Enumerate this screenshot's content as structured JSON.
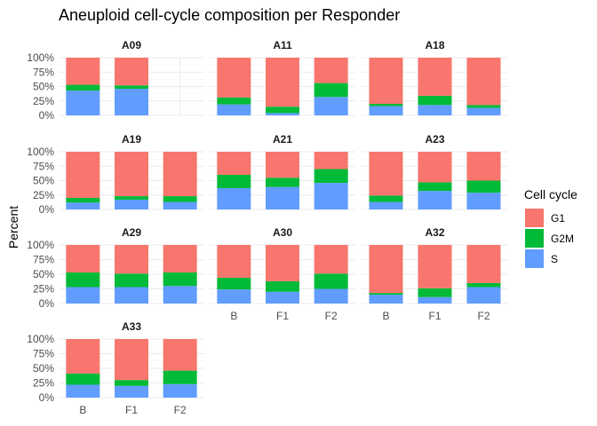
{
  "chart_data": {
    "type": "bar",
    "stacked": true,
    "title": "Aneuploid cell-cycle composition per Responder",
    "xlabel": "",
    "ylabel": "Percent",
    "ylim": [
      0,
      100
    ],
    "y_ticks": [
      "0%",
      "25%",
      "50%",
      "75%",
      "100%"
    ],
    "categories": [
      "B",
      "F1",
      "F2"
    ],
    "legend": {
      "title": "Cell cycle",
      "position": "right",
      "entries": [
        {
          "name": "G1",
          "color": "#F8766D"
        },
        {
          "name": "G2M",
          "color": "#00BA38"
        },
        {
          "name": "S",
          "color": "#619CFF"
        }
      ]
    },
    "grid": true,
    "facets": [
      {
        "name": "A09",
        "bars": [
          {
            "x": "B",
            "S": 43,
            "G2M": 10,
            "G1": 47
          },
          {
            "x": "F1",
            "S": 46,
            "G2M": 6,
            "G1": 48
          }
        ]
      },
      {
        "name": "A11",
        "bars": [
          {
            "x": "B",
            "S": 19,
            "G2M": 12,
            "G1": 69
          },
          {
            "x": "F1",
            "S": 4,
            "G2M": 11,
            "G1": 85
          },
          {
            "x": "F2",
            "S": 32,
            "G2M": 24,
            "G1": 44
          }
        ]
      },
      {
        "name": "A18",
        "bars": [
          {
            "x": "B",
            "S": 16,
            "G2M": 4,
            "G1": 80
          },
          {
            "x": "F1",
            "S": 18,
            "G2M": 16,
            "G1": 66
          },
          {
            "x": "F2",
            "S": 13,
            "G2M": 5,
            "G1": 82
          }
        ]
      },
      {
        "name": "A19",
        "bars": [
          {
            "x": "B",
            "S": 12,
            "G2M": 8,
            "G1": 80
          },
          {
            "x": "F1",
            "S": 17,
            "G2M": 6,
            "G1": 77
          },
          {
            "x": "F2",
            "S": 13,
            "G2M": 10,
            "G1": 77
          }
        ]
      },
      {
        "name": "A21",
        "bars": [
          {
            "x": "B",
            "S": 37,
            "G2M": 23,
            "G1": 40
          },
          {
            "x": "F1",
            "S": 39,
            "G2M": 16,
            "G1": 45
          },
          {
            "x": "F2",
            "S": 46,
            "G2M": 24,
            "G1": 30
          }
        ]
      },
      {
        "name": "A23",
        "bars": [
          {
            "x": "B",
            "S": 13,
            "G2M": 11,
            "G1": 76
          },
          {
            "x": "F1",
            "S": 32,
            "G2M": 15,
            "G1": 53
          },
          {
            "x": "F2",
            "S": 29,
            "G2M": 21,
            "G1": 50
          }
        ]
      },
      {
        "name": "A29",
        "bars": [
          {
            "x": "B",
            "S": 28,
            "G2M": 25,
            "G1": 47
          },
          {
            "x": "F1",
            "S": 28,
            "G2M": 23,
            "G1": 49
          },
          {
            "x": "F2",
            "S": 30,
            "G2M": 23,
            "G1": 47
          }
        ]
      },
      {
        "name": "A30",
        "bars": [
          {
            "x": "B",
            "S": 24,
            "G2M": 20,
            "G1": 56
          },
          {
            "x": "F1",
            "S": 20,
            "G2M": 18,
            "G1": 62
          },
          {
            "x": "F2",
            "S": 25,
            "G2M": 26,
            "G1": 49
          }
        ]
      },
      {
        "name": "A32",
        "bars": [
          {
            "x": "B",
            "S": 15,
            "G2M": 3,
            "G1": 82
          },
          {
            "x": "F1",
            "S": 11,
            "G2M": 15,
            "G1": 74
          },
          {
            "x": "F2",
            "S": 28,
            "G2M": 7,
            "G1": 65
          }
        ]
      },
      {
        "name": "A33",
        "bars": [
          {
            "x": "B",
            "S": 22,
            "G2M": 19,
            "G1": 59
          },
          {
            "x": "F1",
            "S": 20,
            "G2M": 10,
            "G1": 70
          },
          {
            "x": "F2",
            "S": 23,
            "G2M": 23,
            "G1": 54
          }
        ]
      }
    ]
  }
}
